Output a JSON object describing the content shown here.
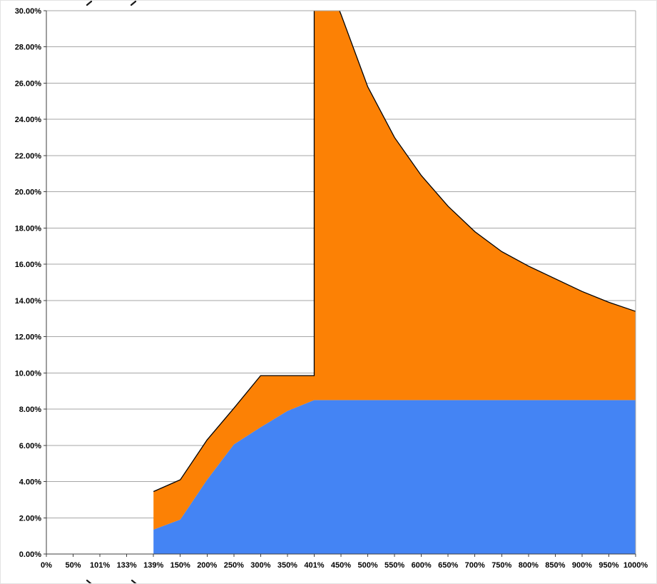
{
  "chart": {
    "background": "#ffffff",
    "frame_border": "#e3e3e3"
  },
  "chart_data": {
    "type": "area",
    "stacked": true,
    "title": "",
    "xlabel": "",
    "ylabel": "",
    "legend": "none",
    "grid": "horizontal",
    "ylim": [
      0,
      30
    ],
    "ytick_step": 2,
    "y_tick_labels": [
      "0.00%",
      "2.00%",
      "4.00%",
      "6.00%",
      "8.00%",
      "10.00%",
      "12.00%",
      "14.00%",
      "16.00%",
      "18.00%",
      "20.00%",
      "22.00%",
      "24.00%",
      "26.00%",
      "28.00%",
      "30.00%"
    ],
    "categories": [
      "0%",
      "50%",
      "101%",
      "133%",
      "139%",
      "150%",
      "200%",
      "250%",
      "300%",
      "350%",
      "401%",
      "450%",
      "500%",
      "550%",
      "600%",
      "650%",
      "700%",
      "750%",
      "800%",
      "850%",
      "900%",
      "950%",
      "1000%"
    ],
    "series": [
      {
        "name": "lower-blue-area",
        "color": "#4484F4",
        "values": [
          null,
          null,
          null,
          null,
          1.35,
          1.9,
          4.1,
          6.05,
          7.0,
          7.9,
          8.5,
          8.5,
          8.5,
          8.5,
          8.5,
          8.5,
          8.5,
          8.5,
          8.5,
          8.5,
          8.5,
          8.5,
          8.5
        ]
      },
      {
        "name": "upper-orange-area",
        "color": "#FC8105",
        "outline_color": "#000000",
        "stack_top_values": [
          null,
          null,
          null,
          null,
          3.45,
          4.1,
          6.3,
          8.05,
          9.85,
          9.85,
          9.85,
          29.8,
          25.8,
          23.0,
          20.9,
          19.2,
          17.8,
          16.7,
          15.9,
          15.2,
          14.5,
          13.9,
          13.4
        ],
        "jump": {
          "category": "401%",
          "from_value": 9.85,
          "to_value_offscale": 33.5
        }
      }
    ],
    "colors": {
      "gridline": "#a6a6a6",
      "axis": "#3f3f3f",
      "plot_border": "#a6a6a6",
      "text": "#000000",
      "artifact": "#1a1a1a"
    }
  }
}
